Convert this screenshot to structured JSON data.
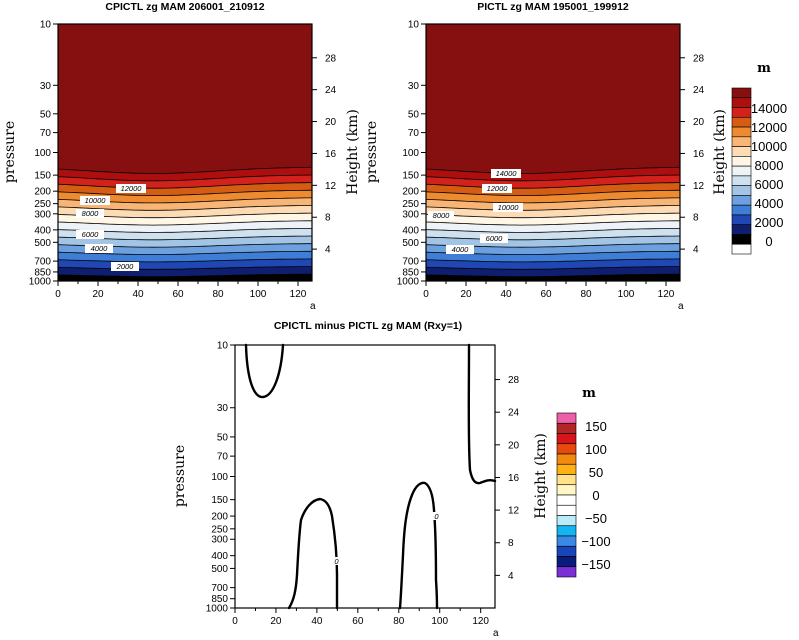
{
  "colors": {
    "abs_levels": [
      "#ffffff",
      "#000000",
      "#101e70",
      "#1f48b4",
      "#3f7ed6",
      "#6da0df",
      "#a2c5e6",
      "#cfe0ee",
      "#edf3f7",
      "#fff6e6",
      "#fddbb4",
      "#f8b575",
      "#ee8a2f",
      "#d55c13",
      "#d3211c",
      "#ad0e0e",
      "#861010"
    ],
    "diff_levels": [
      "#7b2fd6",
      "#0c1a7c",
      "#1846b8",
      "#3a89e6",
      "#13b4f0",
      "#b7ecf8",
      "#ffffff",
      "#ffffff",
      "#fff8c6",
      "#ffe28a",
      "#fdb112",
      "#f38a10",
      "#e64a0c",
      "#d8141a",
      "#b22626",
      "#ee5fa9"
    ]
  },
  "chart_data": [
    {
      "type": "contour",
      "title": "CPICTL zg MAM 206001_210912",
      "ylabel": "pressure",
      "y2label": "Height (km)",
      "x_ticks": [
        "0",
        "20",
        "40",
        "60",
        "80",
        "100",
        "120"
      ],
      "x_range": [
        0,
        127
      ],
      "p_ticks": [
        "10",
        "30",
        "50",
        "70",
        "100",
        "150",
        "200",
        "250",
        "300",
        "400",
        "500",
        "700",
        "850",
        "1000"
      ],
      "p_range": [
        10,
        1000
      ],
      "height_ticks": [
        "28",
        "24",
        "20",
        "16",
        "12",
        "8",
        "4"
      ],
      "contour_labels": [
        "12000",
        "10000",
        "8000",
        "6000",
        "4000",
        "2000"
      ],
      "trough_x": 48,
      "trough_rise_frac": 0.045
    },
    {
      "type": "contour",
      "title": "PICTL zg MAM 195001_199912",
      "ylabel": "pressure",
      "y2label": "Height (km)",
      "x_ticks": [
        "0",
        "20",
        "40",
        "60",
        "80",
        "100",
        "120"
      ],
      "x_range": [
        0,
        127
      ],
      "p_ticks": [
        "10",
        "30",
        "50",
        "70",
        "100",
        "150",
        "200",
        "250",
        "300",
        "400",
        "500",
        "700",
        "850",
        "1000"
      ],
      "p_range": [
        10,
        1000
      ],
      "height_ticks": [
        "28",
        "24",
        "20",
        "16",
        "12",
        "8",
        "4"
      ],
      "contour_labels": [
        "14000",
        "12000",
        "10000",
        "8000",
        "6000",
        "4000"
      ],
      "trough_x": 48,
      "trough_rise_frac": 0.045
    },
    {
      "type": "contour",
      "title": "CPICTL minus PICTL zg MAM (Rxy=1)",
      "ylabel": "pressure",
      "y2label": "Height (km)",
      "x_ticks": [
        "0",
        "20",
        "40",
        "60",
        "80",
        "100",
        "120"
      ],
      "x_range": [
        0,
        127
      ],
      "p_ticks": [
        "10",
        "30",
        "50",
        "70",
        "100",
        "150",
        "200",
        "250",
        "300",
        "400",
        "500",
        "700",
        "850",
        "1000"
      ],
      "p_range": [
        10,
        1000
      ],
      "height_ticks": [
        "28",
        "24",
        "20",
        "16",
        "12",
        "8",
        "4"
      ],
      "contour_labels": [
        "0",
        "0"
      ]
    }
  ],
  "colorbars": [
    {
      "unit": "m",
      "labels": [
        "14000",
        "12000",
        "10000",
        "8000",
        "6000",
        "4000",
        "2000",
        "0"
      ]
    },
    {
      "unit": "m",
      "labels": [
        "150",
        "100",
        "50",
        "0",
        "−50",
        "−100",
        "−150"
      ]
    }
  ],
  "xaxis_corner_label": "a"
}
